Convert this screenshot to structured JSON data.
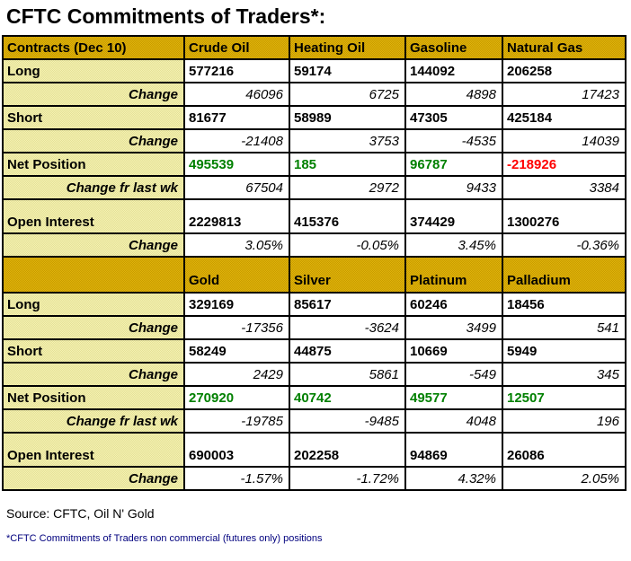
{
  "title": "CFTC Commitments of Traders*:",
  "colors": {
    "header_bg": "#D2A500",
    "label_bg": "#ECE9A2",
    "positive_value": "#008000",
    "negative_value": "#FF0000",
    "footnote_text": "#00007E",
    "border": "#000000"
  },
  "sections": [
    {
      "header": {
        "label": "Contracts (Dec 10)",
        "columns": [
          "Crude Oil",
          "Heating Oil",
          "Gasoline",
          "Natural Gas"
        ]
      },
      "rows": [
        {
          "label": "Long",
          "style": "main",
          "values": [
            "577216",
            "59174",
            "144092",
            "206258"
          ]
        },
        {
          "label": "Change",
          "style": "change",
          "values": [
            "46096",
            "6725",
            "4898",
            "17423"
          ]
        },
        {
          "label": "Short",
          "style": "main",
          "values": [
            "81677",
            "58989",
            "47305",
            "425184"
          ]
        },
        {
          "label": "Change",
          "style": "change",
          "values": [
            "-21408",
            "3753",
            "-4535",
            "14039"
          ]
        },
        {
          "label": "Net Position",
          "style": "net",
          "values": [
            "495539",
            "185",
            "96787",
            "-218926"
          ]
        },
        {
          "label": "Change fr last wk",
          "style": "change",
          "values": [
            "67504",
            "2972",
            "9433",
            "3384"
          ]
        },
        {
          "label": "Open Interest",
          "style": "main",
          "tall": true,
          "values": [
            "2229813",
            "415376",
            "374429",
            "1300276"
          ]
        },
        {
          "label": "Change",
          "style": "change",
          "values": [
            "3.05%",
            "-0.05%",
            "3.45%",
            "-0.36%"
          ]
        }
      ]
    },
    {
      "header": {
        "label": "",
        "columns": [
          "Gold",
          "Silver",
          "Platinum",
          "Palladium"
        ]
      },
      "rows": [
        {
          "label": "Long",
          "style": "main",
          "values": [
            "329169",
            "85617",
            "60246",
            "18456"
          ]
        },
        {
          "label": "Change",
          "style": "change",
          "values": [
            "-17356",
            "-3624",
            "3499",
            "541"
          ]
        },
        {
          "label": "Short",
          "style": "main",
          "values": [
            "58249",
            "44875",
            "10669",
            "5949"
          ]
        },
        {
          "label": "Change",
          "style": "change",
          "values": [
            "2429",
            "5861",
            "-549",
            "345"
          ]
        },
        {
          "label": "Net Position",
          "style": "net",
          "values": [
            "270920",
            "40742",
            "49577",
            "12507"
          ]
        },
        {
          "label": "Change fr last wk",
          "style": "change",
          "values": [
            "-19785",
            "-9485",
            "4048",
            "196"
          ]
        },
        {
          "label": "Open Interest",
          "style": "main",
          "tall": true,
          "values": [
            "690003",
            "202258",
            "94869",
            "26086"
          ]
        },
        {
          "label": "Change",
          "style": "change",
          "values": [
            "-1.57%",
            "-1.72%",
            "4.32%",
            "2.05%"
          ]
        }
      ]
    }
  ],
  "footer": {
    "source": "Source: CFTC, Oil N' Gold",
    "footnote": "*CFTC Commitments of Traders non commercial (futures only) positions"
  }
}
